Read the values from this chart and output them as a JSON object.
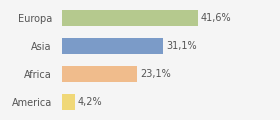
{
  "categories": [
    "Europa",
    "Asia",
    "Africa",
    "America"
  ],
  "values": [
    41.6,
    31.1,
    23.1,
    4.2
  ],
  "labels": [
    "41,6%",
    "31,1%",
    "23,1%",
    "4,2%"
  ],
  "colors": [
    "#b5c98e",
    "#7b9bc8",
    "#f0bc8c",
    "#f0d878"
  ],
  "xlim": [
    0,
    65
  ],
  "background_color": "#f5f5f5",
  "bar_height": 0.58,
  "label_fontsize": 7.0,
  "tick_fontsize": 7.0,
  "label_color": "#555555",
  "tick_color": "#555555"
}
